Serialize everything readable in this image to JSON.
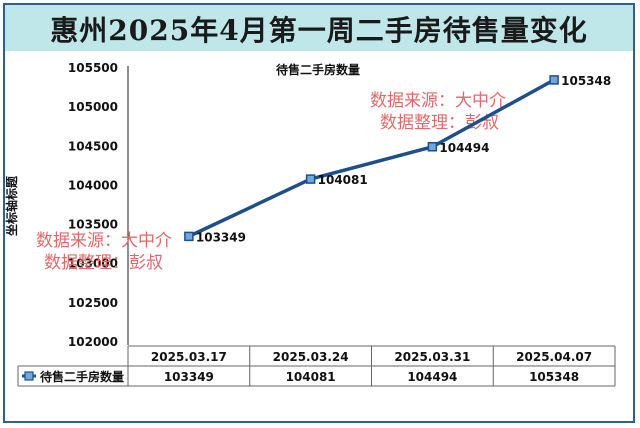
{
  "title": "惠州2025年4月第一周二手房待售量变化",
  "watermark": {
    "line1": "数据来源：大中介",
    "line2": "数据整理：彭叔"
  },
  "colors": {
    "title_bg": "#bfe7e9",
    "line": "#1f4e8c",
    "marker": "#6fa8dc",
    "watermark": "#e06a6a"
  },
  "chart_data": {
    "type": "line",
    "title": "待售二手房数量",
    "ylabel": "坐标轴标题",
    "xlabel": "",
    "categories": [
      "2025.03.17",
      "2025.03.24",
      "2025.03.31",
      "2025.04.07"
    ],
    "series": [
      {
        "name": "待售二手房数量",
        "values": [
          103349,
          104081,
          104494,
          105348
        ]
      }
    ],
    "ylim": [
      102000,
      105500
    ],
    "yticks": [
      102000,
      102500,
      103000,
      103500,
      104000,
      104500,
      105000,
      105500
    ],
    "grid": false,
    "legend": "data-table-bottom",
    "data_table": true
  }
}
